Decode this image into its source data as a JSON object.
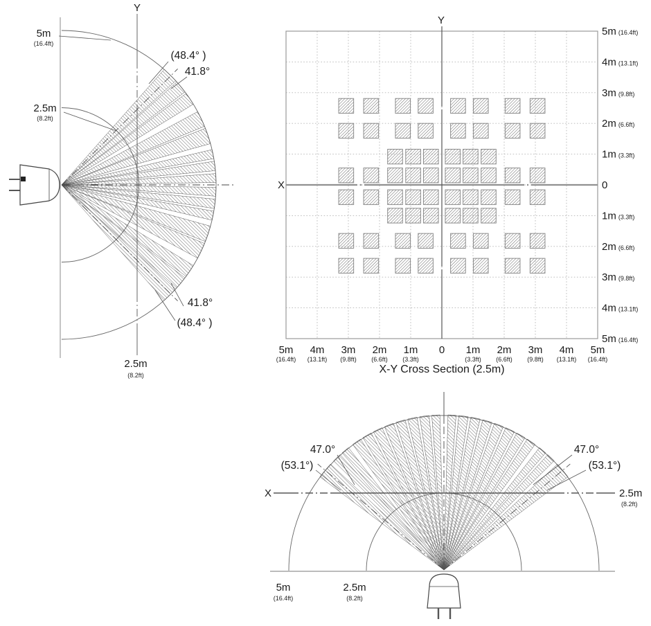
{
  "chart_data": [
    {
      "id": "y-direction-fan",
      "type": "diagram-fan",
      "axis_label": "Y",
      "detection_half_angle_deg": 41.8,
      "detection_half_angle_max_deg": 48.4,
      "range_m": 5,
      "range_mid_m": 2.5,
      "labels": {
        "r5": "5m",
        "r5_ft": "(16.4ft)",
        "r25": "2.5m",
        "r25_ft": "(8.2ft)",
        "angle_outer_top": "(48.4° )",
        "angle_inner_top": "41.8°",
        "angle_inner_bottom": "41.8°",
        "angle_outer_bottom": "(48.4° )",
        "plane": "2.5m",
        "plane_ft": "(8.2ft)"
      },
      "beams_deg": [
        [
          0.9,
          4.2
        ],
        [
          5.3,
          8.8
        ],
        [
          9.8,
          13.2
        ],
        [
          15.5,
          21.5
        ],
        [
          22.3,
          28.3
        ],
        [
          31.5,
          36.3
        ],
        [
          37,
          41.8
        ],
        [
          42.4,
          48.4
        ]
      ]
    },
    {
      "id": "xy-cross-section",
      "type": "zone-grid",
      "title": "X-Y Cross Section (2.5m)",
      "x_axis_label": "X",
      "y_axis_label": "Y",
      "grid_range_m": [
        -5,
        5
      ],
      "x_ticks": [
        {
          "m": "5m",
          "ft": "(16.4ft)"
        },
        {
          "m": "4m",
          "ft": "(13.1ft)"
        },
        {
          "m": "3m",
          "ft": "(9.8ft)"
        },
        {
          "m": "2m",
          "ft": "(6.6ft)"
        },
        {
          "m": "1m",
          "ft": "(3.3ft)"
        },
        {
          "m": "0",
          "ft": ""
        },
        {
          "m": "1m",
          "ft": "(3.3ft)"
        },
        {
          "m": "2m",
          "ft": "(6.6ft)"
        },
        {
          "m": "3m",
          "ft": "(9.8ft)"
        },
        {
          "m": "4m",
          "ft": "(13.1ft)"
        },
        {
          "m": "5m",
          "ft": "(16.4ft)"
        }
      ],
      "y_ticks": [
        {
          "m": "5m",
          "ft": "(16.4ft)"
        },
        {
          "m": "4m",
          "ft": "(13.1ft)"
        },
        {
          "m": "3m",
          "ft": "(9.8ft)"
        },
        {
          "m": "2m",
          "ft": "(6.6ft)"
        },
        {
          "m": "1m",
          "ft": "(3.3ft)"
        },
        {
          "m": "0",
          "ft": ""
        },
        {
          "m": "1m",
          "ft": "(3.3ft)"
        },
        {
          "m": "2m",
          "ft": "(6.6ft)"
        },
        {
          "m": "3m",
          "ft": "(9.8ft)"
        },
        {
          "m": "4m",
          "ft": "(13.1ft)"
        },
        {
          "m": "5m",
          "ft": "(16.4ft)"
        }
      ],
      "zone_size_m": 0.48,
      "zone_rows": [
        {
          "y": 2.57,
          "x": [
            -3.07,
            -2.27,
            -1.25,
            -0.52,
            0.52,
            1.25,
            2.27,
            3.07
          ]
        },
        {
          "y": 1.76,
          "x": [
            -3.07,
            -2.27,
            -1.25,
            -0.52,
            0.52,
            1.25,
            2.27,
            3.07
          ]
        },
        {
          "y": 0.92,
          "x": [
            -1.5,
            -0.92,
            -0.35,
            0.35,
            0.92,
            1.5
          ]
        },
        {
          "y": 0.31,
          "x": [
            -3.07,
            -2.27,
            -1.5,
            -0.92,
            -0.35,
            0.35,
            0.92,
            1.5,
            2.27,
            3.07
          ]
        },
        {
          "y": -0.4,
          "x": [
            -3.07,
            -2.27,
            -1.5,
            -0.92,
            -0.35,
            0.35,
            0.92,
            1.5,
            2.27,
            3.07
          ]
        },
        {
          "y": -1.0,
          "x": [
            -1.5,
            -0.92,
            -0.35,
            0.35,
            0.92,
            1.5
          ]
        },
        {
          "y": -1.82,
          "x": [
            -3.07,
            -2.27,
            -1.25,
            -0.52,
            0.52,
            1.25,
            2.27,
            3.07
          ]
        },
        {
          "y": -2.63,
          "x": [
            -3.07,
            -2.27,
            -1.25,
            -0.52,
            0.52,
            1.25,
            2.27,
            3.07
          ]
        }
      ]
    },
    {
      "id": "x-direction-fan",
      "type": "diagram-fan",
      "x_axis_label": "X",
      "detection_half_angle_deg": 47.0,
      "detection_half_angle_max_deg": 53.1,
      "range_m": 5,
      "range_mid_m": 2.5,
      "labels": {
        "angle_inner": "47.0°",
        "angle_outer": "(53.1°)",
        "plane": "2.5m",
        "plane_ft": "(8.2ft)",
        "r5": "5m",
        "r5_ft": "(16.4ft)",
        "r25": "2.5m",
        "r25_ft": "(8.2ft)"
      },
      "beams_deg": [
        [
          1.5,
          4.5
        ],
        [
          5.5,
          9
        ],
        [
          10,
          13.5
        ],
        [
          14.5,
          18
        ],
        [
          19,
          22.5
        ],
        [
          23.5,
          27
        ],
        [
          28,
          31.5
        ],
        [
          32.5,
          36
        ],
        [
          38,
          41
        ],
        [
          42,
          45.3
        ],
        [
          47,
          53.1
        ]
      ]
    }
  ]
}
